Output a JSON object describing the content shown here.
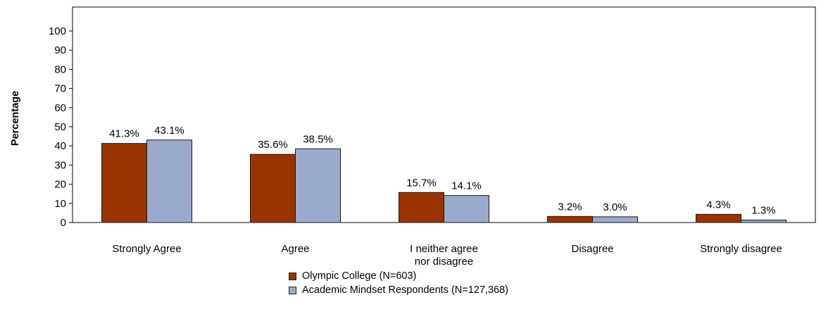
{
  "chart_data": {
    "type": "bar",
    "title": "",
    "xlabel": "",
    "ylabel": "Percentage",
    "ylim": [
      0,
      100
    ],
    "yticks": [
      0,
      10,
      20,
      30,
      40,
      50,
      60,
      70,
      80,
      90,
      100
    ],
    "grid": false,
    "legend_position": "bottom",
    "categories": [
      [
        "Strongly Agree"
      ],
      [
        "Agree"
      ],
      [
        "I neither agree",
        "nor disagree"
      ],
      [
        "Disagree"
      ],
      [
        "Strongly disagree"
      ]
    ],
    "series": [
      {
        "name": "Olympic College (N=603)",
        "color": "#993300",
        "values": [
          41.3,
          35.6,
          15.7,
          3.2,
          4.3
        ],
        "labels": [
          "41.3%",
          "35.6%",
          "15.7%",
          "3.2%",
          "4.3%"
        ]
      },
      {
        "name": "Academic Mindset Respondents (N=127,368)",
        "color": "#99aacc",
        "values": [
          43.1,
          38.5,
          14.1,
          3.0,
          1.3
        ],
        "labels": [
          "43.1%",
          "38.5%",
          "14.1%",
          "3.0%",
          "1.3%"
        ]
      }
    ]
  }
}
